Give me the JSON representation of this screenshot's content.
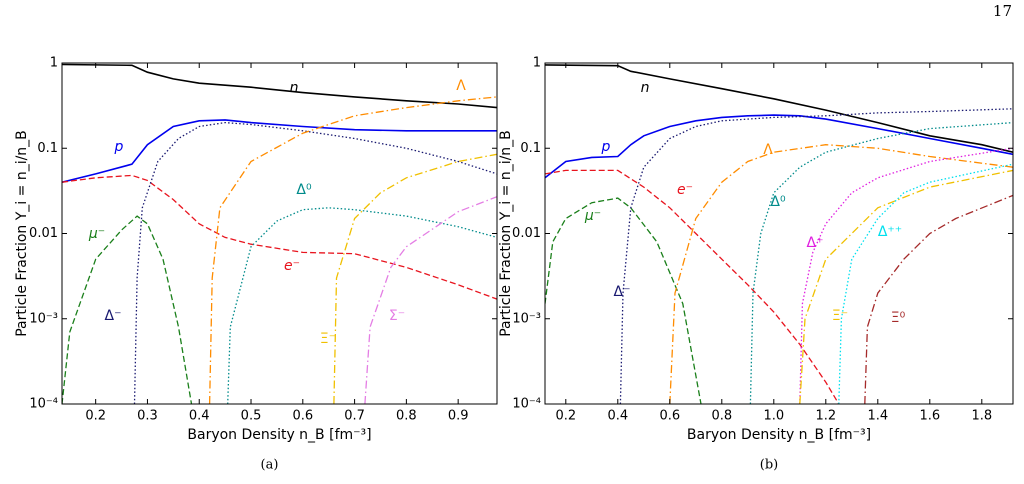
{
  "page_number": "17",
  "chart_data": [
    {
      "type": "line",
      "caption": "(a)",
      "xlabel": "Baryon Density n_B [fm⁻³]",
      "ylabel": "Particle Fraction Y_i = n_i/n_B",
      "log_y": true,
      "xlim": [
        0.135,
        0.975
      ],
      "ylim": [
        0.0001,
        1
      ],
      "xticks": [
        0.2,
        0.3,
        0.4,
        0.5,
        0.6,
        0.7,
        0.8,
        0.9
      ],
      "yticks": [
        {
          "value": 0.0001,
          "label": "10⁻⁴"
        },
        {
          "value": 0.001,
          "label": "10⁻³"
        },
        0.01,
        0.1,
        1
      ],
      "series": [
        {
          "name": "n",
          "color": "#000000",
          "dash": "solid",
          "x": [
            0.135,
            0.27,
            0.3,
            0.35,
            0.4,
            0.5,
            0.6,
            0.7,
            0.8,
            0.9,
            0.975
          ],
          "values": [
            0.96,
            0.94,
            0.78,
            0.65,
            0.58,
            0.52,
            0.45,
            0.4,
            0.36,
            0.33,
            0.3
          ]
        },
        {
          "name": "p",
          "color": "#0000ee",
          "dash": "solid",
          "x": [
            0.135,
            0.2,
            0.27,
            0.3,
            0.35,
            0.4,
            0.45,
            0.5,
            0.6,
            0.7,
            0.8,
            0.975
          ],
          "values": [
            0.04,
            0.05,
            0.065,
            0.11,
            0.18,
            0.21,
            0.215,
            0.2,
            0.18,
            0.165,
            0.16,
            0.16
          ]
        },
        {
          "name": "e⁻",
          "color": "#e8141e",
          "dash": "dashed",
          "x": [
            0.135,
            0.2,
            0.27,
            0.3,
            0.35,
            0.4,
            0.45,
            0.5,
            0.6,
            0.7,
            0.8,
            0.9,
            0.975
          ],
          "values": [
            0.04,
            0.045,
            0.048,
            0.042,
            0.025,
            0.013,
            0.009,
            0.0075,
            0.006,
            0.0058,
            0.004,
            0.0025,
            0.0017
          ]
        },
        {
          "name": "μ⁻",
          "color": "#1a7f1a",
          "dash": "dashed",
          "x": [
            0.135,
            0.15,
            0.2,
            0.25,
            0.28,
            0.3,
            0.33,
            0.36,
            0.385
          ],
          "values": [
            0.0001,
            0.0007,
            0.005,
            0.011,
            0.016,
            0.013,
            0.005,
            0.0008,
            0.0001
          ]
        },
        {
          "name": "Δ⁻",
          "color": "#191970",
          "dash": "dotted",
          "x": [
            0.275,
            0.28,
            0.29,
            0.32,
            0.36,
            0.4,
            0.45,
            0.5,
            0.6,
            0.7,
            0.8,
            0.9,
            0.975
          ],
          "values": [
            0.0001,
            0.003,
            0.02,
            0.07,
            0.13,
            0.18,
            0.2,
            0.19,
            0.16,
            0.13,
            0.1,
            0.07,
            0.05
          ]
        },
        {
          "name": "Λ",
          "color": "#ff8c00",
          "dash": "dashdot",
          "x": [
            0.42,
            0.425,
            0.44,
            0.5,
            0.6,
            0.7,
            0.8,
            0.9,
            0.975
          ],
          "values": [
            0.0001,
            0.003,
            0.02,
            0.07,
            0.15,
            0.24,
            0.3,
            0.36,
            0.4
          ]
        },
        {
          "name": "Δ⁰",
          "color": "#008b8b",
          "dash": "dotted",
          "x": [
            0.455,
            0.46,
            0.5,
            0.55,
            0.6,
            0.65,
            0.7,
            0.8,
            0.9,
            0.975
          ],
          "values": [
            0.0001,
            0.0008,
            0.007,
            0.014,
            0.019,
            0.02,
            0.019,
            0.016,
            0.012,
            0.009
          ]
        },
        {
          "name": "Ξ⁻",
          "color": "#f0c000",
          "dash": "dashdot",
          "x": [
            0.66,
            0.665,
            0.7,
            0.75,
            0.8,
            0.9,
            0.975
          ],
          "values": [
            0.0001,
            0.003,
            0.015,
            0.03,
            0.045,
            0.07,
            0.085
          ]
        },
        {
          "name": "Σ⁻",
          "color": "#e47ee4",
          "dash": "dashdot",
          "x": [
            0.72,
            0.73,
            0.77,
            0.8,
            0.9,
            0.975
          ],
          "values": [
            0.0001,
            0.0008,
            0.004,
            0.007,
            0.018,
            0.027
          ]
        }
      ]
    },
    {
      "type": "line",
      "caption": "(b)",
      "xlabel": "Baryon Density n_B [fm⁻³]",
      "ylabel": "Particle Fraction Y_i = n_i/n_B",
      "log_y": true,
      "xlim": [
        0.12,
        1.92
      ],
      "ylim": [
        0.0001,
        1
      ],
      "xticks": [
        0.2,
        0.4,
        0.6,
        0.8,
        {
          "value": 1,
          "label": "1.0"
        },
        1.2,
        1.4,
        1.6,
        1.8
      ],
      "yticks": [
        {
          "value": 0.0001,
          "label": "10⁻⁴"
        },
        {
          "value": 0.001,
          "label": "10⁻³"
        },
        0.01,
        0.1,
        1
      ],
      "series": [
        {
          "name": "n",
          "color": "#000000",
          "dash": "solid",
          "x": [
            0.12,
            0.4,
            0.45,
            0.6,
            0.8,
            1.0,
            1.2,
            1.4,
            1.6,
            1.8,
            1.92
          ],
          "values": [
            0.95,
            0.93,
            0.8,
            0.65,
            0.5,
            0.38,
            0.28,
            0.2,
            0.14,
            0.11,
            0.09
          ]
        },
        {
          "name": "p",
          "color": "#0000ee",
          "dash": "solid",
          "x": [
            0.12,
            0.2,
            0.3,
            0.4,
            0.45,
            0.5,
            0.6,
            0.7,
            0.8,
            0.9,
            1.0,
            1.1,
            1.2,
            1.4,
            1.6,
            1.8,
            1.92
          ],
          "values": [
            0.045,
            0.07,
            0.078,
            0.08,
            0.11,
            0.14,
            0.18,
            0.21,
            0.23,
            0.24,
            0.245,
            0.24,
            0.22,
            0.17,
            0.13,
            0.1,
            0.085
          ]
        },
        {
          "name": "e⁻",
          "color": "#e8141e",
          "dash": "dashed",
          "x": [
            0.12,
            0.2,
            0.4,
            0.5,
            0.6,
            0.7,
            0.8,
            0.9,
            1.0,
            1.1,
            1.2,
            1.25
          ],
          "values": [
            0.05,
            0.055,
            0.055,
            0.035,
            0.02,
            0.01,
            0.005,
            0.0025,
            0.0012,
            0.0005,
            0.00018,
            0.0001
          ]
        },
        {
          "name": "μ⁻",
          "color": "#1a7f1a",
          "dash": "dashed",
          "x": [
            0.12,
            0.15,
            0.2,
            0.3,
            0.4,
            0.45,
            0.55,
            0.65,
            0.72
          ],
          "values": [
            0.0015,
            0.008,
            0.015,
            0.023,
            0.026,
            0.02,
            0.008,
            0.0015,
            0.0001
          ]
        },
        {
          "name": "Δ⁻",
          "color": "#191970",
          "dash": "dotted",
          "x": [
            0.41,
            0.42,
            0.45,
            0.5,
            0.6,
            0.7,
            0.8,
            1.0,
            1.2,
            1.4,
            1.6,
            1.92
          ],
          "values": [
            0.0001,
            0.002,
            0.02,
            0.06,
            0.13,
            0.18,
            0.21,
            0.23,
            0.24,
            0.26,
            0.27,
            0.29
          ]
        },
        {
          "name": "Λ",
          "color": "#ff8c00",
          "dash": "dashdot",
          "x": [
            0.6,
            0.62,
            0.7,
            0.8,
            0.9,
            1.0,
            1.2,
            1.4,
            1.6,
            1.92
          ],
          "values": [
            0.0001,
            0.002,
            0.015,
            0.04,
            0.07,
            0.09,
            0.11,
            0.1,
            0.08,
            0.06
          ]
        },
        {
          "name": "Δ⁰",
          "color": "#008b8b",
          "dash": "dotted",
          "x": [
            0.91,
            0.92,
            0.95,
            1.0,
            1.1,
            1.2,
            1.4,
            1.6,
            1.92
          ],
          "values": [
            0.0001,
            0.002,
            0.01,
            0.03,
            0.06,
            0.09,
            0.13,
            0.17,
            0.2
          ]
        },
        {
          "name": "Δ⁺",
          "color": "#e020e0",
          "dash": "dotted",
          "x": [
            1.1,
            1.11,
            1.15,
            1.2,
            1.3,
            1.4,
            1.6,
            1.92
          ],
          "values": [
            0.0001,
            0.0015,
            0.006,
            0.013,
            0.03,
            0.045,
            0.07,
            0.1
          ]
        },
        {
          "name": "Ξ⁻",
          "color": "#f0c000",
          "dash": "dashdot",
          "x": [
            1.1,
            1.12,
            1.2,
            1.3,
            1.4,
            1.6,
            1.92
          ],
          "values": [
            0.0001,
            0.001,
            0.005,
            0.01,
            0.02,
            0.035,
            0.055
          ]
        },
        {
          "name": "Δ⁺⁺",
          "color": "#00e0ee",
          "dash": "dotted",
          "x": [
            1.25,
            1.26,
            1.3,
            1.4,
            1.5,
            1.6,
            1.92
          ],
          "values": [
            0.0001,
            0.001,
            0.005,
            0.015,
            0.03,
            0.04,
            0.065
          ]
        },
        {
          "name": "Ξ⁰",
          "color": "#a52a2a",
          "dash": "dashdot",
          "x": [
            1.35,
            1.36,
            1.4,
            1.5,
            1.6,
            1.7,
            1.92
          ],
          "values": [
            0.0001,
            0.0008,
            0.002,
            0.005,
            0.01,
            0.015,
            0.028
          ]
        }
      ]
    }
  ]
}
